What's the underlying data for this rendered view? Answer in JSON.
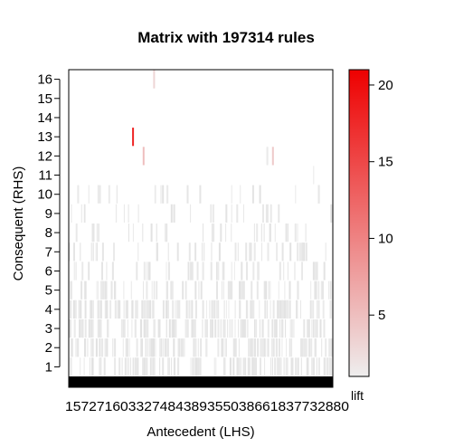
{
  "chart_data": {
    "type": "heatmap",
    "title": "Matrix with 197314 rules",
    "xlabel": "Antecedent (LHS)",
    "ylabel": "Consequent (RHS)",
    "x_tick_text": "157271603327484389355038661837732880",
    "y_ticks": [
      "1",
      "2",
      "3",
      "4",
      "5",
      "6",
      "7",
      "8",
      "9",
      "10",
      "11",
      "12",
      "13",
      "14",
      "15",
      "16"
    ],
    "ylim": [
      0.5,
      16.5
    ],
    "colorbar": {
      "label": "lift",
      "ticks": [
        "5",
        "10",
        "15",
        "20"
      ],
      "tick_values": [
        5,
        10,
        15,
        20
      ],
      "range": [
        1,
        21
      ],
      "low_color": "#eeeeee",
      "high_color": "#ee0000"
    },
    "notable_cells": [
      {
        "rhs": 16,
        "lift": 3,
        "lhs_fraction": 0.32
      },
      {
        "rhs": 13,
        "lift": 18,
        "lhs_fraction": 0.24
      },
      {
        "rhs": 12,
        "lift": 5,
        "lhs_fraction": 0.28
      },
      {
        "rhs": 12,
        "lift": 4,
        "lhs_fraction": 0.77
      }
    ],
    "rhs_density": [
      0.9,
      0.9,
      0.85,
      0.85,
      0.55,
      0.35,
      0.3,
      0.22,
      0.18,
      0.15,
      0.01,
      0.005,
      0.002,
      0,
      0,
      0.002
    ]
  }
}
